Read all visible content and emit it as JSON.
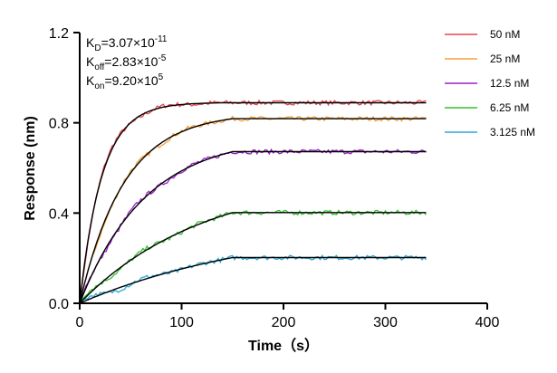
{
  "chart_data": {
    "type": "line",
    "xlabel": "Time（s）",
    "ylabel": "Response (nm)",
    "xlim": [
      0,
      400
    ],
    "ylim": [
      0.0,
      1.2
    ],
    "x_ticks": [
      0,
      100,
      200,
      300,
      400
    ],
    "x_tick_labels": [
      "0",
      "100",
      "200",
      "300",
      "400"
    ],
    "y_ticks": [
      0.0,
      0.4,
      0.8,
      1.2
    ],
    "y_tick_labels": [
      "0.0",
      "0.4",
      "0.8",
      "1.2"
    ],
    "grid": false,
    "legend_position": "right",
    "association_end_s": 150,
    "x_end_s": 340,
    "fit_color": "#000000",
    "annotations": [
      {
        "main": "K",
        "sub": "D",
        "value": "=3.07×10",
        "exp": "-11"
      },
      {
        "main": "K",
        "sub": "off",
        "value": "=2.83×10",
        "exp": "-5"
      },
      {
        "main": "K",
        "sub": "on",
        "value": "=9.20×10",
        "exp": "5"
      }
    ],
    "series": [
      {
        "name": "50 nM",
        "color": "#e8474f",
        "kobs": 0.046,
        "plateau": 0.89
      },
      {
        "name": "25 nM",
        "color": "#f5a23a",
        "kobs": 0.023,
        "plateau": 0.845
      },
      {
        "name": "12.5 nM",
        "color": "#9b1fc8",
        "kobs": 0.0155,
        "plateau": 0.745
      },
      {
        "name": "6.25 nM",
        "color": "#35c030",
        "kobs": 0.0082,
        "plateau": 0.568
      },
      {
        "name": "3.125 nM",
        "color": "#2aa8d8",
        "kobs": 0.0054,
        "plateau": 0.365
      }
    ]
  }
}
